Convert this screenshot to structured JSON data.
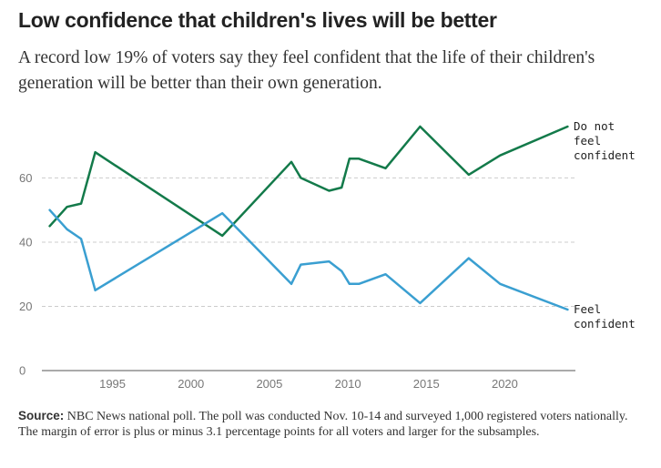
{
  "title": "Low confidence that children's lives will be better",
  "subtitle": "A record low 19% of voters say they feel confident that the life of their children's generation will be better than their own generation.",
  "source": {
    "label": "Source:",
    "text": "NBC News national poll. The poll was conducted Nov. 10-14 and surveyed 1,000 registered voters nationally. The margin of error is plus or minus 3.1 percentage points for all voters and larger for the subsamples."
  },
  "colors": {
    "not_confident": "#137a4a",
    "confident": "#3a9fd1",
    "grid": "#cccccc",
    "axis": "#555555"
  },
  "chart_data": {
    "type": "line",
    "xlim": [
      1990.5,
      2024.5
    ],
    "ylim": [
      0,
      76
    ],
    "x_ticks": [
      1995,
      2000,
      2005,
      2010,
      2015,
      2020
    ],
    "y_ticks": [
      0,
      20,
      40,
      60
    ],
    "grid": "horizontal dashed",
    "series": [
      {
        "name": "Do not feel confident",
        "label_lines": [
          "Do not",
          "feel",
          "confident"
        ],
        "color": "#137a4a",
        "x": [
          1991.0,
          1992.1,
          1993.0,
          1993.9,
          2002.0,
          2006.4,
          2007.0,
          2008.8,
          2009.6,
          2010.1,
          2010.7,
          2012.4,
          2014.6,
          2017.7,
          2019.7,
          2024.0
        ],
        "y": [
          45,
          51,
          52,
          68,
          42,
          65,
          60,
          56,
          57,
          66,
          66,
          63,
          76,
          61,
          67,
          76
        ]
      },
      {
        "name": "Feel confident",
        "label_lines": [
          "Feel",
          "confident"
        ],
        "color": "#3a9fd1",
        "x": [
          1991.0,
          1992.1,
          1993.0,
          1993.9,
          2002.0,
          2006.4,
          2007.0,
          2008.8,
          2009.6,
          2010.1,
          2010.7,
          2012.4,
          2014.6,
          2017.7,
          2019.7,
          2024.0
        ],
        "y": [
          50,
          44,
          41,
          25,
          49,
          27,
          33,
          34,
          31,
          27,
          27,
          30,
          21,
          35,
          27,
          19
        ]
      }
    ]
  }
}
